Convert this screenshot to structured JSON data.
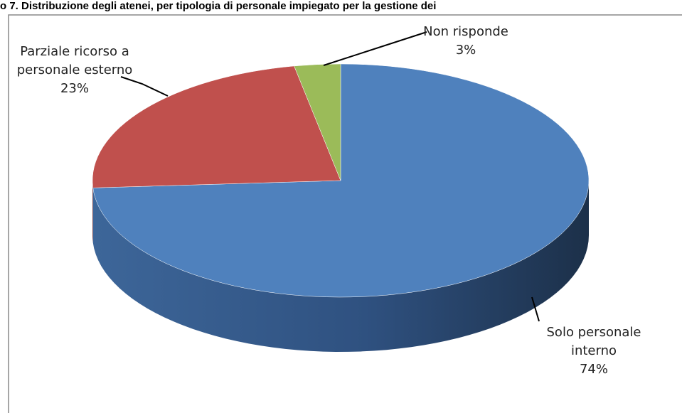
{
  "chart_data": {
    "type": "pie",
    "title": "o 7. Distribuzione degli atenei, per tipologia di personale impiegato per la gestione dei",
    "categories": [
      "Solo personale interno",
      "Parziale ricorso a personale esterno",
      "Non risponde"
    ],
    "values": [
      74,
      23,
      3
    ],
    "value_labels": [
      "74%",
      "23%",
      "3%"
    ],
    "colors": [
      "#4f81bd",
      "#c0504d",
      "#9bbb59"
    ]
  }
}
